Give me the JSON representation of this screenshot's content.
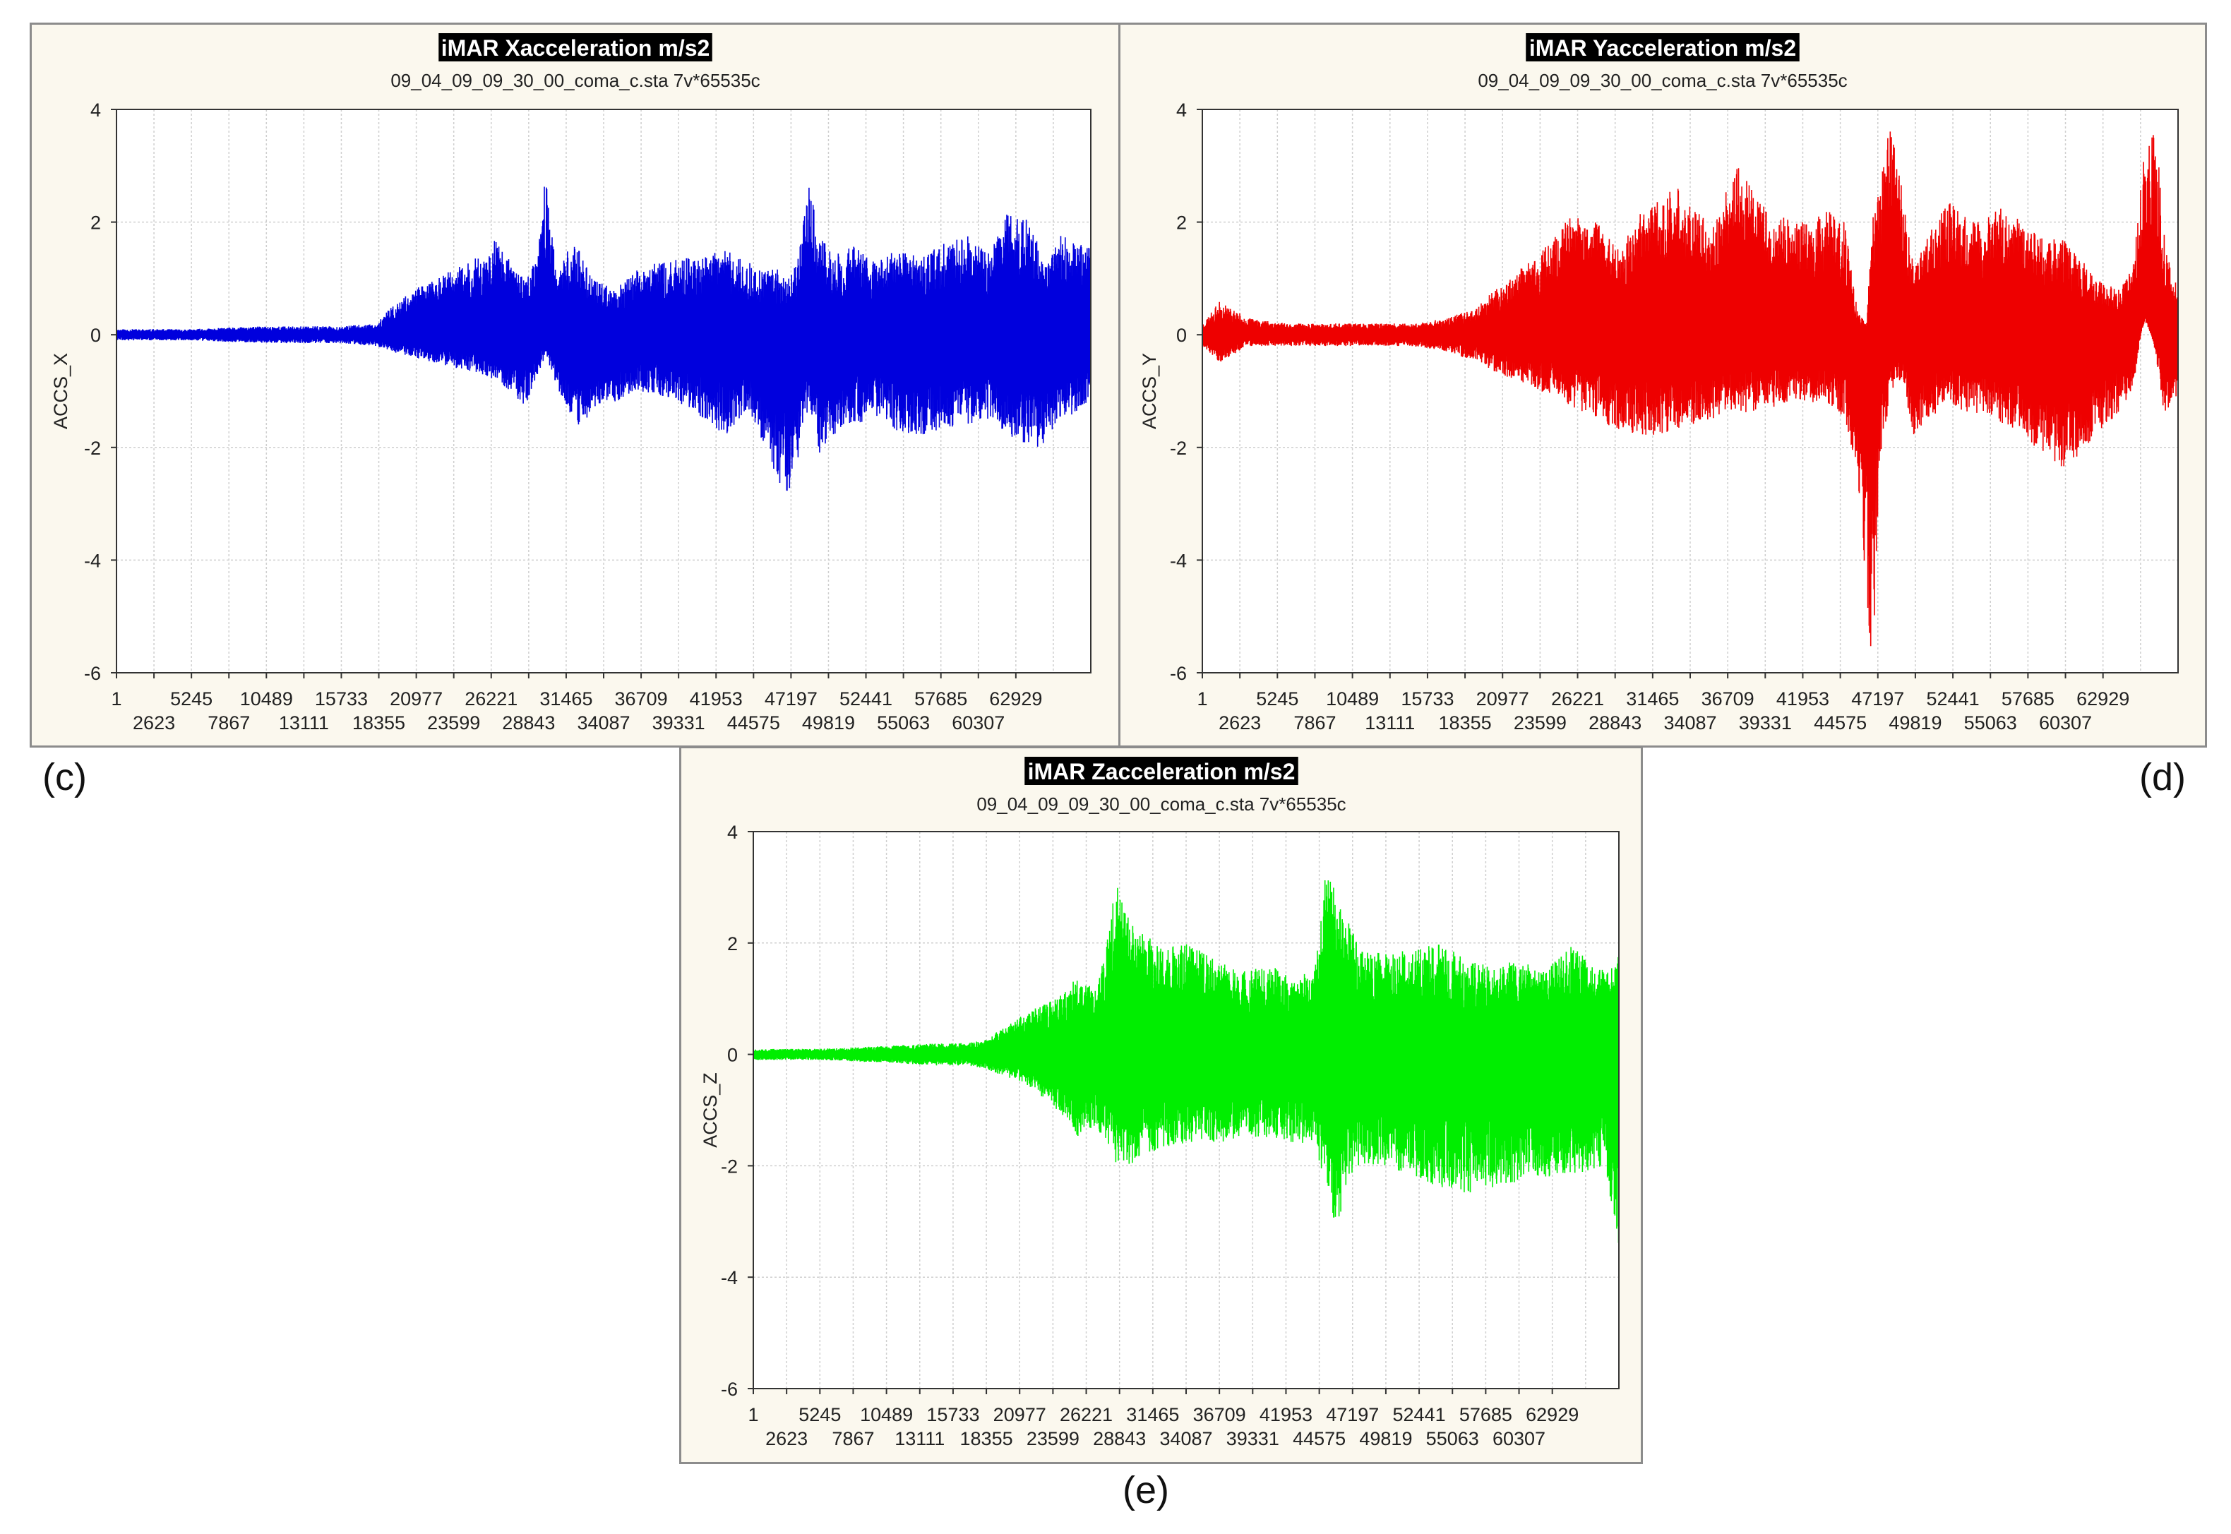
{
  "captions": {
    "c": "(c)",
    "d": "(d)",
    "e": "(e)"
  },
  "chart_data": [
    {
      "id": "c",
      "type": "line",
      "title": "iMAR Xacceleration m/s2",
      "subtitle": "09_04_09_09_30_00_coma_c.sta 7v*65535c",
      "ylabel": "ACCS_X",
      "xlabel": "",
      "ylim": [
        -6,
        4
      ],
      "yticks": [
        4,
        2,
        0,
        -2,
        -4,
        -6
      ],
      "xlim": [
        1,
        65535
      ],
      "xticks_top": [
        "1",
        "5245",
        "10489",
        "15733",
        "20977",
        "26221",
        "31465",
        "36709",
        "41953",
        "47197",
        "52441",
        "57685",
        "62929"
      ],
      "xticks_bottom": [
        "2623",
        "7867",
        "13111",
        "18355",
        "23599",
        "28843",
        "34087",
        "39331",
        "44575",
        "49819",
        "55063",
        "60307"
      ],
      "grid": true,
      "color": "#0000dd",
      "series": [
        {
          "x": [
            1,
            5000,
            10000,
            15000,
            17500,
            18500,
            20000,
            21500,
            23000,
            24500,
            25500,
            26500,
            27500,
            28200,
            28900,
            29600,
            30500,
            31300,
            32000,
            33500,
            35000,
            37000,
            39000,
            41000,
            42500,
            43500,
            44500,
            45200,
            45800,
            46600,
            47300,
            48200,
            49500,
            51000,
            52500,
            54000,
            55500,
            57000,
            58500,
            60000,
            61500,
            62500,
            63500,
            64500,
            65535
          ],
          "upper": [
            0.1,
            0.1,
            0.15,
            0.15,
            0.2,
            0.5,
            0.8,
            1.0,
            1.2,
            1.4,
            1.7,
            1.3,
            1.0,
            1.3,
            2.9,
            1.0,
            1.6,
            1.5,
            1.0,
            0.8,
            1.2,
            1.3,
            1.4,
            1.5,
            1.3,
            1.1,
            1.2,
            1.0,
            1.3,
            2.7,
            1.8,
            1.4,
            1.6,
            1.3,
            1.5,
            1.4,
            1.6,
            1.8,
            1.5,
            2.2,
            2.0,
            1.2,
            1.8,
            1.6,
            1.7
          ],
          "lower": [
            -0.1,
            -0.1,
            -0.15,
            -0.15,
            -0.2,
            -0.3,
            -0.4,
            -0.5,
            -0.6,
            -0.7,
            -0.8,
            -1.0,
            -1.3,
            -0.8,
            -0.4,
            -0.9,
            -1.4,
            -1.7,
            -1.3,
            -1.2,
            -1.0,
            -1.1,
            -1.4,
            -1.8,
            -1.3,
            -2.0,
            -2.6,
            -2.8,
            -2.3,
            -1.2,
            -2.1,
            -1.8,
            -1.6,
            -1.5,
            -1.7,
            -1.8,
            -1.7,
            -1.6,
            -1.5,
            -1.8,
            -2.0,
            -2.0,
            -1.5,
            -1.4,
            -1.2
          ]
        }
      ]
    },
    {
      "id": "d",
      "type": "line",
      "title": "iMAR Yacceleration m/s2",
      "subtitle": "09_04_09_09_30_00_coma_c.sta 7v*65535c",
      "ylabel": "ACCS_Y",
      "xlabel": "",
      "ylim": [
        -6,
        4
      ],
      "yticks": [
        4,
        2,
        0,
        -2,
        -4,
        -6
      ],
      "xlim": [
        1,
        65535
      ],
      "xticks_top": [
        "1",
        "5245",
        "10489",
        "15733",
        "20977",
        "26221",
        "31465",
        "36709",
        "41953",
        "47197",
        "52441",
        "57685",
        "62929"
      ],
      "xticks_bottom": [
        "2623",
        "7867",
        "13111",
        "18355",
        "23599",
        "28843",
        "34087",
        "39331",
        "44575",
        "49819",
        "55063",
        "60307"
      ],
      "grid": true,
      "color": "#ee0000",
      "series": [
        {
          "x": [
            1,
            1200,
            3000,
            6000,
            10000,
            14000,
            16500,
            18500,
            20000,
            22000,
            23500,
            25000,
            26500,
            28000,
            30000,
            32000,
            34000,
            36000,
            38000,
            40000,
            42000,
            43200,
            44000,
            44600,
            45000,
            45500,
            46200,
            47000,
            47800,
            48700,
            50000,
            52000,
            54000,
            56000,
            58000,
            60000,
            61500,
            62500,
            63300,
            64000,
            64700,
            65535
          ],
          "upper": [
            0.2,
            0.6,
            0.3,
            0.2,
            0.2,
            0.2,
            0.3,
            0.5,
            0.9,
            1.3,
            1.7,
            2.2,
            2.0,
            1.6,
            2.4,
            2.6,
            2.0,
            3.0,
            2.2,
            2.0,
            2.2,
            2.0,
            0.4,
            0.2,
            2.1,
            2.6,
            3.8,
            2.6,
            1.2,
            1.8,
            2.4,
            2.0,
            2.3,
            1.8,
            1.7,
            1.0,
            0.8,
            1.2,
            3.3,
            3.8,
            1.5,
            0.8
          ],
          "lower": [
            -0.2,
            -0.5,
            -0.2,
            -0.2,
            -0.2,
            -0.2,
            -0.3,
            -0.5,
            -0.7,
            -0.9,
            -1.1,
            -1.3,
            -1.5,
            -1.7,
            -1.8,
            -1.7,
            -1.5,
            -1.4,
            -1.3,
            -1.2,
            -1.2,
            -1.5,
            -2.5,
            -4.8,
            -6.0,
            -2.5,
            -1.0,
            -0.8,
            -1.8,
            -1.5,
            -1.3,
            -1.4,
            -1.6,
            -2.0,
            -2.4,
            -1.8,
            -1.4,
            -1.0,
            0.5,
            -0.3,
            -1.6,
            -1.0
          ]
        }
      ]
    },
    {
      "id": "e",
      "type": "line",
      "title": "iMAR Zacceleration m/s2",
      "subtitle": "09_04_09_09_30_00_coma_c.sta 7v*65535c",
      "ylabel": "ACCS_Z",
      "xlabel": "",
      "ylim": [
        -6,
        4
      ],
      "yticks": [
        4,
        2,
        0,
        -2,
        -4,
        -6
      ],
      "xlim": [
        1,
        65535
      ],
      "xticks_top": [
        "1",
        "5245",
        "10489",
        "15733",
        "20977",
        "26221",
        "31465",
        "36709",
        "41953",
        "47197",
        "52441",
        "57685",
        "62929"
      ],
      "xticks_bottom": [
        "2623",
        "7867",
        "13111",
        "18355",
        "23599",
        "28843",
        "34087",
        "39331",
        "44575",
        "49819",
        "55063",
        "60307"
      ],
      "grid": true,
      "color": "#00ee00",
      "series": [
        {
          "x": [
            1,
            5000,
            10000,
            14000,
            16000,
            17500,
            19000,
            21000,
            23000,
            24500,
            26000,
            27500,
            28500,
            29500,
            31000,
            33000,
            35000,
            37000,
            39000,
            41000,
            42500,
            43500,
            44200,
            45000,
            46000,
            48000,
            50000,
            52000,
            54000,
            56000,
            58000,
            60000,
            62000,
            63500,
            64500,
            65535
          ],
          "upper": [
            0.1,
            0.1,
            0.15,
            0.2,
            0.2,
            0.25,
            0.5,
            0.8,
            1.0,
            1.4,
            1.2,
            3.1,
            2.5,
            2.2,
            1.9,
            2.0,
            1.7,
            1.5,
            1.6,
            1.4,
            1.5,
            3.6,
            2.8,
            2.4,
            1.9,
            1.8,
            1.9,
            2.0,
            1.7,
            1.6,
            1.7,
            1.5,
            2.0,
            1.6,
            1.5,
            1.8
          ],
          "lower": [
            -0.1,
            -0.1,
            -0.15,
            -0.2,
            -0.2,
            -0.25,
            -0.4,
            -0.6,
            -1.0,
            -1.5,
            -1.3,
            -2.0,
            -2.0,
            -1.8,
            -1.7,
            -1.6,
            -1.6,
            -1.5,
            -1.5,
            -1.6,
            -1.6,
            -2.5,
            -3.2,
            -2.2,
            -2.0,
            -2.0,
            -2.2,
            -2.4,
            -2.5,
            -2.4,
            -2.3,
            -2.2,
            -2.2,
            -2.1,
            -2.0,
            -3.6
          ]
        }
      ]
    }
  ]
}
